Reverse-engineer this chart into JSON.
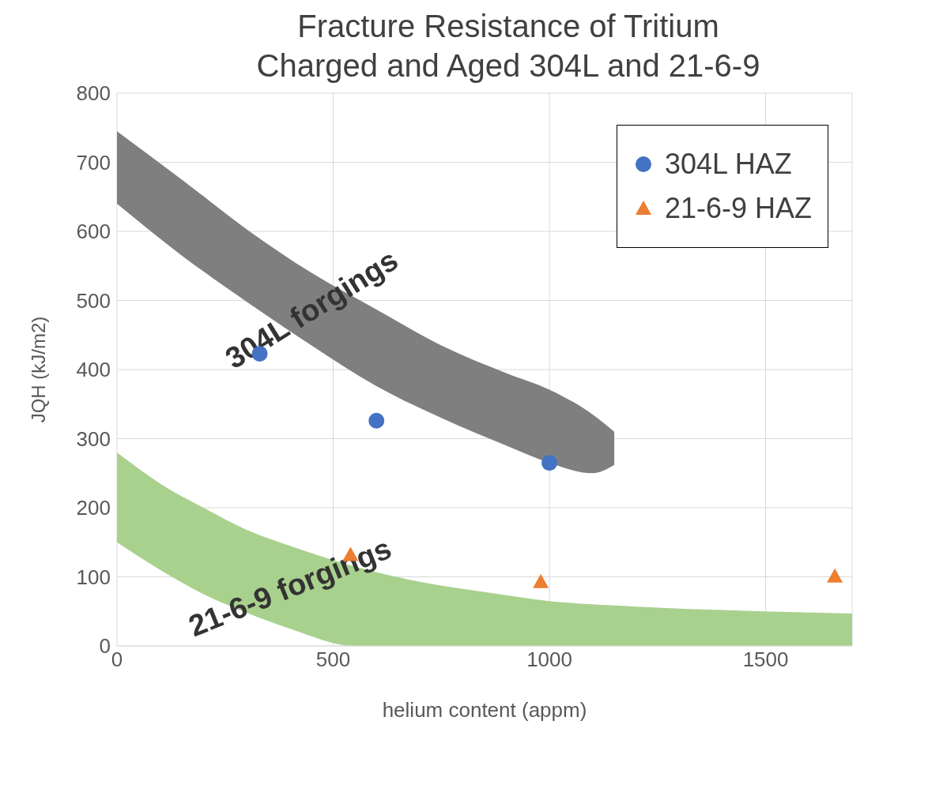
{
  "chart_data": {
    "type": "scatter",
    "title": "Fracture Resistance of Tritium\nCharged and Aged 304L and 21-6-9",
    "xlabel": "helium content (appm)",
    "ylabel": "JQH (kJ/m2)",
    "xlim": [
      0,
      1700
    ],
    "xticks": [
      0,
      500,
      1000,
      1500
    ],
    "ylim": [
      0,
      800
    ],
    "yticks": [
      0,
      100,
      200,
      300,
      400,
      500,
      600,
      700,
      800
    ],
    "grid": true,
    "legend": "top right",
    "series": [
      {
        "name": "304L forgings",
        "type": "line",
        "x": [
          0,
          150,
          300,
          450,
          600,
          750,
          900,
          1000,
          1100,
          1150
        ],
        "values": [
          null,
          null,
          null,
          null,
          null,
          null,
          null,
          null,
          null,
          null
        ],
        "lower": [
          640,
          565,
          498,
          435,
          376,
          330,
          290,
          265,
          250,
          262
        ],
        "upper": [
          745,
          675,
          603,
          540,
          487,
          435,
          395,
          371,
          335,
          310
        ]
      },
      {
        "name": "21-6-9 forgings",
        "type": "line",
        "x": [
          0,
          100,
          200,
          300,
          400,
          550,
          700,
          850,
          1000,
          1200,
          1400,
          1700
        ],
        "values": [
          null,
          null,
          null,
          null,
          null,
          null,
          null,
          null,
          null,
          null,
          null,
          null
        ],
        "lower": [
          150,
          110,
          75,
          48,
          25,
          0,
          0,
          0,
          0,
          0,
          0,
          0
        ],
        "upper": [
          280,
          235,
          200,
          168,
          145,
          115,
          93,
          78,
          65,
          57,
          52,
          47
        ]
      },
      {
        "name": "304L HAZ",
        "type": "scatter",
        "marker": "circle",
        "color": "#4472c4",
        "x": [
          330,
          600,
          1000
        ],
        "values": [
          423,
          326,
          265
        ]
      },
      {
        "name": "21-6-9 HAZ",
        "type": "scatter",
        "marker": "triangle",
        "color": "#ed7d31",
        "x": [
          540,
          980,
          1660
        ],
        "values": [
          132,
          93,
          101
        ]
      }
    ]
  }
}
